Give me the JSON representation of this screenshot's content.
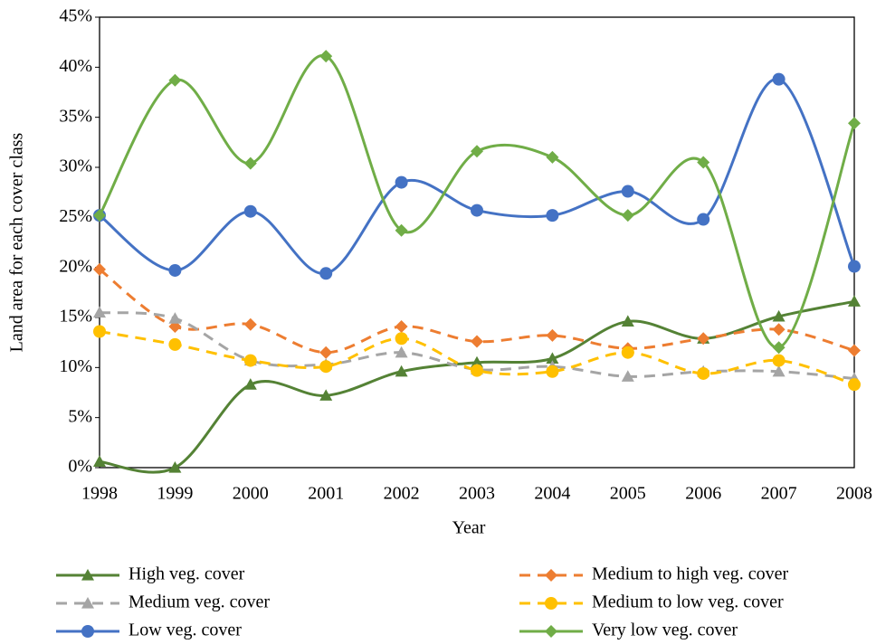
{
  "chart_data": {
    "type": "line",
    "x_label": "Year",
    "y_label": "Land area for each cover class",
    "categories": [
      "1998",
      "1999",
      "2000",
      "2001",
      "2002",
      "2003",
      "2004",
      "2005",
      "2006",
      "2007",
      "2008"
    ],
    "ylim": [
      0,
      45
    ],
    "yticks": [
      {
        "value": 0,
        "label": "0%"
      },
      {
        "value": 5,
        "label": "5%"
      },
      {
        "value": 10,
        "label": "10%"
      },
      {
        "value": 15,
        "label": "15%"
      },
      {
        "value": 20,
        "label": "20%"
      },
      {
        "value": 25,
        "label": "25%"
      },
      {
        "value": 30,
        "label": "30%"
      },
      {
        "value": 35,
        "label": "35%"
      },
      {
        "value": 40,
        "label": "40%"
      },
      {
        "value": 45,
        "label": "45%"
      }
    ],
    "smooth": true,
    "series": [
      {
        "name": "High veg. cover",
        "color": "#548235",
        "marker": "triangle",
        "dashed": false,
        "values": [
          0.6,
          0,
          8.3,
          7.2,
          9.6,
          10.5,
          10.9,
          14.6,
          12.9,
          15.1,
          16.6
        ]
      },
      {
        "name": "Medium to high veg. cover",
        "color": "#ed7d31",
        "marker": "diamond",
        "dashed": true,
        "values": [
          19.8,
          14.1,
          14.3,
          11.5,
          14.1,
          12.6,
          13.2,
          11.9,
          12.9,
          13.8,
          11.7
        ]
      },
      {
        "name": "Medium veg. cover",
        "color": "#a5a5a5",
        "marker": "triangle",
        "dashed": true,
        "values": [
          15.5,
          14.9,
          10.7,
          10.3,
          11.5,
          9.8,
          10.1,
          9.1,
          9.6,
          9.6,
          8.9
        ]
      },
      {
        "name": "Medium to low veg. cover",
        "color": "#ffc000",
        "marker": "circle",
        "dashed": true,
        "values": [
          13.6,
          12.3,
          10.7,
          10.1,
          12.9,
          9.7,
          9.6,
          11.5,
          9.4,
          10.7,
          8.3
        ]
      },
      {
        "name": "Low veg. cover",
        "color": "#4472c4",
        "marker": "circle",
        "dashed": false,
        "values": [
          25.2,
          19.7,
          25.6,
          19.4,
          28.5,
          25.7,
          25.2,
          27.6,
          24.8,
          38.8,
          20.1
        ]
      },
      {
        "name": "Very low veg. cover",
        "color": "#70ad47",
        "marker": "diamond",
        "dashed": false,
        "values": [
          25.2,
          38.7,
          30.4,
          41.1,
          23.7,
          31.6,
          31.0,
          25.2,
          30.5,
          12.0,
          34.4
        ]
      }
    ]
  }
}
